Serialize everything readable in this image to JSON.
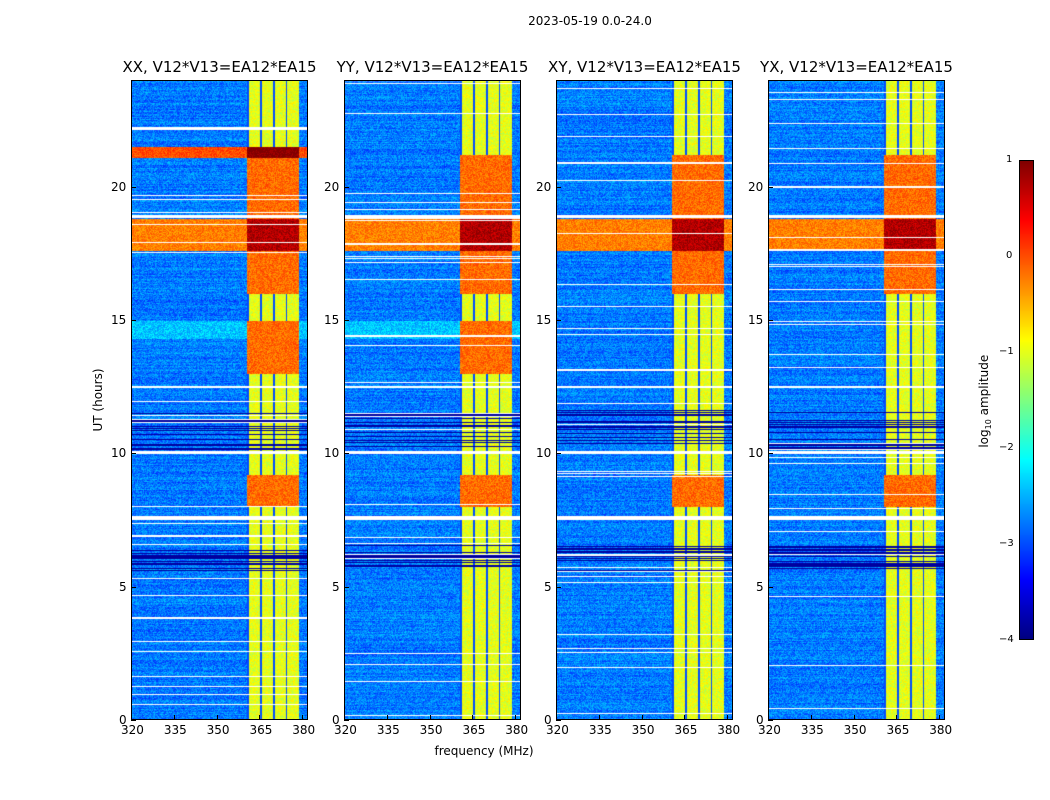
{
  "figure": {
    "suptitle": "2023-05-19 0.0-24.0",
    "xlabel": "frequency (MHz)",
    "ylabel": "UT (hours)",
    "colorbar_label_prefix": "log",
    "colorbar_label_sub": "10",
    "colorbar_label_suffix": " amplitude"
  },
  "chart_data": [
    {
      "type": "heatmap",
      "title": "XX, V12*V13=EA12*EA15",
      "xlabel": "frequency (MHz)",
      "ylabel": "UT (hours)",
      "xlim": [
        320,
        382
      ],
      "ylim": [
        0,
        24
      ],
      "xticks": [
        "320",
        "335",
        "350",
        "365",
        "380"
      ],
      "yticks": [
        "0",
        "5",
        "10",
        "15",
        "20"
      ],
      "colormap": "jet",
      "clim": [
        -4,
        1
      ],
      "features": {
        "bright_band_MHz": [
          360,
          378
        ],
        "strong_rfi_hours": [
          17.6,
          18.8,
          21.2
        ],
        "flagged_hours": [
          10.2,
          10.9,
          11.4,
          11.7,
          7.6,
          7.4,
          6.6,
          5.6
        ]
      }
    },
    {
      "type": "heatmap",
      "title": "YY, V12*V13=EA12*EA15",
      "xlim": [
        320,
        382
      ],
      "ylim": [
        0,
        24
      ],
      "xticks": [
        "320",
        "335",
        "350",
        "365",
        "380"
      ],
      "yticks": [
        "0",
        "5",
        "10",
        "15",
        "20"
      ],
      "colormap": "jet",
      "clim": [
        -4,
        1
      ]
    },
    {
      "type": "heatmap",
      "title": "XY, V12*V13=EA12*EA15",
      "xlim": [
        320,
        382
      ],
      "ylim": [
        0,
        24
      ],
      "xticks": [
        "320",
        "335",
        "350",
        "365",
        "380"
      ],
      "yticks": [
        "0",
        "5",
        "10",
        "15",
        "20"
      ],
      "colormap": "jet",
      "clim": [
        -4,
        1
      ]
    },
    {
      "type": "heatmap",
      "title": "YX, V12*V13=EA12*EA15",
      "xlim": [
        320,
        382
      ],
      "ylim": [
        0,
        24
      ],
      "xticks": [
        "320",
        "335",
        "350",
        "365",
        "380"
      ],
      "yticks": [
        "0",
        "5",
        "10",
        "15",
        "20"
      ],
      "colormap": "jet",
      "clim": [
        -4,
        1
      ]
    }
  ],
  "colorbar": {
    "ticks": [
      "1",
      "0",
      "−1",
      "−2",
      "−3",
      "−4"
    ],
    "range": [
      -4,
      1
    ]
  }
}
